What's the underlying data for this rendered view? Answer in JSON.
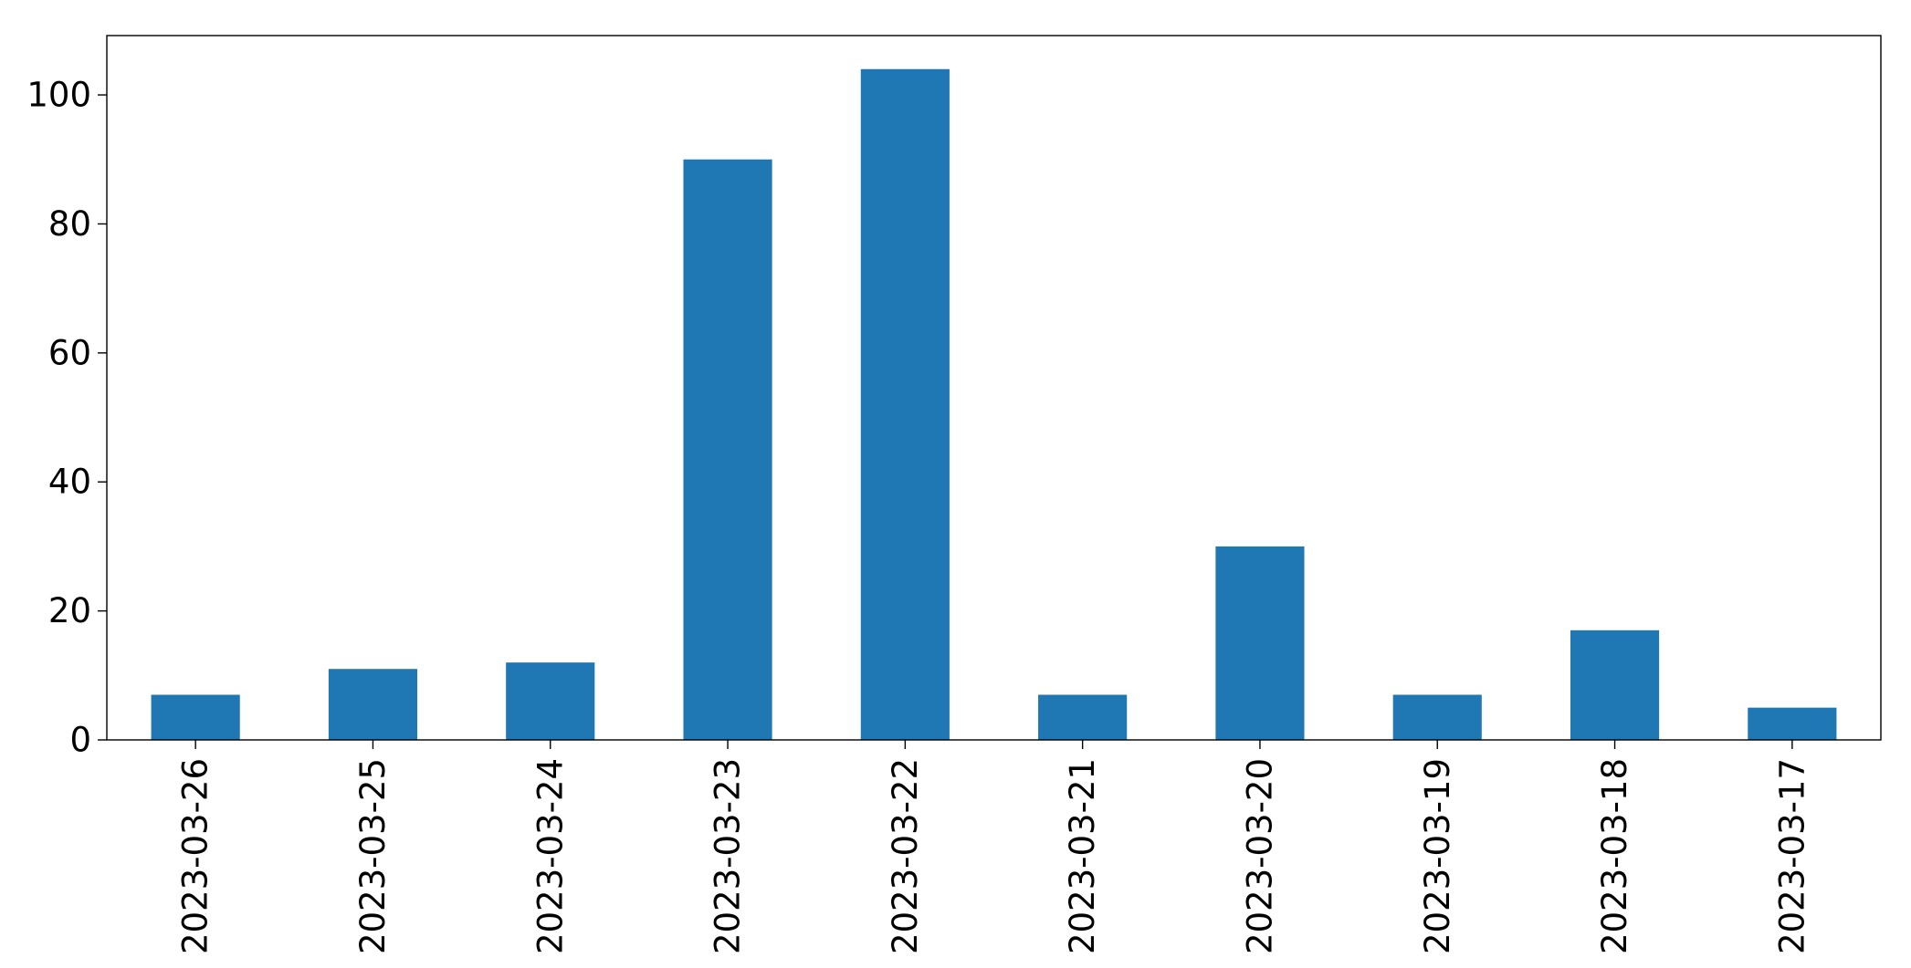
{
  "chart_data": {
    "type": "bar",
    "categories": [
      "2023-03-26",
      "2023-03-25",
      "2023-03-24",
      "2023-03-23",
      "2023-03-22",
      "2023-03-21",
      "2023-03-20",
      "2023-03-19",
      "2023-03-18",
      "2023-03-17"
    ],
    "values": [
      7,
      11,
      12,
      90,
      104,
      7,
      30,
      7,
      17,
      5
    ],
    "ylim": [
      0,
      109.2
    ],
    "yticks": [
      0,
      20,
      40,
      60,
      80,
      100
    ],
    "bar_color": "#1f77b4",
    "grid": false,
    "legend": "none"
  }
}
